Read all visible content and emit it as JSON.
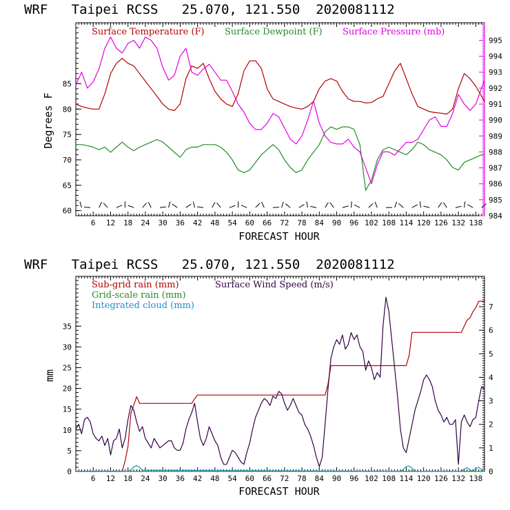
{
  "chart_data": [
    {
      "type": "line",
      "title": "WRF   Taipei RCSS   25.070, 121.550  2020081112",
      "xlabel": "FORECAST HOUR",
      "ylabel": "Degrees F",
      "x_ticks": [
        "6",
        "12",
        "18",
        "24",
        "30",
        "36",
        "42",
        "48",
        "54",
        "60",
        "66",
        "72",
        "78",
        "84",
        "90",
        "96",
        "102",
        "108",
        "114",
        "120",
        "126",
        "132",
        "138"
      ],
      "xlim": [
        0,
        141
      ],
      "ylim_left": [
        59,
        97
      ],
      "ylim_right": [
        984,
        996.1
      ],
      "y_ticks_left": [
        "60",
        "65",
        "70",
        "75",
        "80",
        "85"
      ],
      "y_ticks_right": [
        "984",
        "985",
        "986",
        "987",
        "988",
        "989",
        "990",
        "991",
        "992",
        "993",
        "994",
        "995"
      ],
      "colors": {
        "temp": "#b00000",
        "dewpoint": "#228b22",
        "pressure": "#e000e0",
        "wind_barbs": "#000000"
      },
      "series": [
        {
          "name": "Surface Temperature (F)",
          "axis": "left",
          "x": [
            0,
            2,
            4,
            6,
            8,
            10,
            12,
            14,
            16,
            18,
            20,
            22,
            24,
            26,
            28,
            30,
            32,
            34,
            36,
            38,
            40,
            42,
            44,
            46,
            48,
            50,
            52,
            54,
            56,
            58,
            60,
            62,
            64,
            66,
            68,
            70,
            72,
            74,
            76,
            78,
            80,
            82,
            84,
            86,
            88,
            90,
            92,
            94,
            96,
            98,
            100,
            102,
            104,
            106,
            108,
            110,
            112,
            114,
            116,
            118,
            120,
            122,
            124,
            126,
            128,
            130,
            132,
            134,
            136,
            138,
            140,
            141
          ],
          "values": [
            81,
            80.5,
            80.2,
            80,
            80,
            83,
            87,
            89,
            90,
            89,
            88.5,
            87,
            85.5,
            84,
            82.5,
            81,
            80,
            79.7,
            81,
            86,
            88.5,
            88,
            89,
            86,
            83.5,
            82,
            81,
            80.5,
            83,
            87.5,
            89.5,
            89.5,
            88,
            84,
            82,
            81.5,
            81,
            80.5,
            80.2,
            80,
            80.5,
            81.5,
            84,
            85.5,
            86,
            85.5,
            83.5,
            82,
            81.5,
            81.5,
            81.2,
            81.3,
            82,
            82.5,
            85,
            87.5,
            89,
            86,
            83,
            80.5,
            80,
            79.5,
            79.3,
            79.2,
            79,
            80,
            84,
            87,
            86,
            84.5,
            82.5,
            81.5
          ]
        },
        {
          "name": "Surface Dewpoint (F)",
          "axis": "left",
          "x": [
            0,
            2,
            4,
            6,
            8,
            10,
            12,
            14,
            16,
            18,
            20,
            22,
            24,
            26,
            28,
            30,
            32,
            34,
            36,
            38,
            40,
            42,
            44,
            46,
            48,
            50,
            52,
            54,
            56,
            58,
            60,
            62,
            64,
            66,
            68,
            70,
            72,
            74,
            76,
            78,
            80,
            82,
            84,
            86,
            88,
            90,
            92,
            94,
            96,
            98,
            100,
            102,
            104,
            106,
            108,
            110,
            112,
            114,
            116,
            118,
            120,
            122,
            124,
            126,
            128,
            130,
            132,
            134,
            136,
            138,
            140,
            141
          ],
          "values": [
            73,
            73,
            72.8,
            72.5,
            72,
            72.5,
            71.5,
            72.5,
            73.5,
            72.5,
            71.8,
            72.5,
            73,
            73.5,
            74,
            73.5,
            72.5,
            71.5,
            70.5,
            72,
            72.5,
            72.5,
            73,
            73,
            73,
            72.5,
            71.5,
            70,
            68,
            67.5,
            68,
            69.5,
            71,
            72,
            73,
            72,
            70,
            68.5,
            67.5,
            68,
            70,
            71.5,
            73,
            75.5,
            76.5,
            76,
            76.5,
            76.5,
            76,
            73,
            64,
            66,
            70,
            72,
            72.5,
            72,
            71.5,
            71,
            72,
            73.5,
            73,
            72,
            71.5,
            71,
            70,
            68.5,
            68,
            69.5,
            70,
            70.5,
            71,
            71
          ]
        },
        {
          "name": "Surface Pressure (mb)",
          "axis": "right",
          "x": [
            0,
            2,
            4,
            6,
            8,
            10,
            12,
            14,
            16,
            18,
            20,
            22,
            24,
            26,
            28,
            30,
            32,
            34,
            36,
            38,
            40,
            42,
            44,
            46,
            48,
            50,
            52,
            54,
            56,
            58,
            60,
            62,
            64,
            66,
            68,
            70,
            72,
            74,
            76,
            78,
            80,
            82,
            84,
            86,
            88,
            90,
            92,
            94,
            96,
            98,
            100,
            102,
            104,
            106,
            108,
            110,
            112,
            114,
            116,
            118,
            120,
            122,
            124,
            126,
            128,
            130,
            132,
            134,
            136,
            138,
            140,
            141
          ],
          "values": [
            992.2,
            993,
            992,
            992.4,
            993.2,
            994.5,
            995.2,
            994.5,
            994.2,
            994.8,
            995,
            994.5,
            995.2,
            995,
            994.5,
            993.3,
            992.5,
            992.8,
            994,
            994.5,
            993,
            992.8,
            993.2,
            993.5,
            993,
            992.5,
            992.5,
            991.8,
            991,
            990.5,
            989.8,
            989.4,
            989.4,
            989.8,
            990.4,
            990.2,
            989.5,
            988.8,
            988.5,
            989,
            990,
            991.2,
            989.8,
            989,
            988.6,
            988.5,
            988.5,
            988.8,
            988.3,
            988,
            987,
            986,
            987.2,
            988,
            988,
            987.8,
            988.2,
            988.6,
            988.6,
            988.8,
            989.4,
            990,
            990.2,
            989.6,
            989.6,
            990.4,
            991.6,
            991,
            990.6,
            991,
            992,
            992.5
          ]
        }
      ],
      "wind_barbs_note": "row of wind barbs drawn along the bottom of the panel"
    },
    {
      "type": "line",
      "title": "WRF   Taipei RCSS   25.070, 121.550  2020081112",
      "xlabel": "FORECAST HOUR",
      "ylabel": "mm",
      "x_ticks": [
        "6",
        "12",
        "18",
        "24",
        "30",
        "36",
        "42",
        "48",
        "54",
        "60",
        "66",
        "72",
        "78",
        "84",
        "90",
        "96",
        "102",
        "108",
        "114",
        "120",
        "126",
        "132",
        "138"
      ],
      "xlim": [
        0,
        141
      ],
      "ylim_left": [
        0,
        47
      ],
      "ylim_right": [
        0,
        8.29
      ],
      "y_ticks_left": [
        "0",
        "5",
        "10",
        "15",
        "20",
        "25",
        "30",
        "35"
      ],
      "y_ticks_right": [
        "0",
        "1",
        "2",
        "3",
        "4",
        "5",
        "6",
        "7"
      ],
      "colors": {
        "subgrid": "#b00000",
        "gridscale": "#228b22",
        "cloud": "#1e90c8",
        "wind": "#330044"
      },
      "series": [
        {
          "name": "Sub-grid rain (mm)",
          "axis": "left",
          "x": [
            0,
            16,
            17,
            18,
            19,
            20,
            21,
            22,
            40,
            41,
            42,
            43,
            86,
            87,
            88,
            89,
            108,
            109,
            110,
            111,
            112,
            113,
            114,
            115,
            116,
            117,
            118,
            132,
            133,
            134,
            135,
            136,
            137,
            138,
            139,
            141
          ],
          "values": [
            0,
            0,
            2.5,
            6,
            14,
            16,
            18,
            16.4,
            16.4,
            17.5,
            18.4,
            18.4,
            18.4,
            21,
            25.5,
            25.5,
            25.5,
            25.5,
            25.5,
            25.5,
            25.5,
            25.5,
            25.5,
            28,
            33.5,
            33.5,
            33.5,
            33.5,
            33.5,
            35,
            36.5,
            37,
            38.5,
            39.5,
            41,
            41
          ]
        },
        {
          "name": "Grid-scale rain (mm)",
          "axis": "left",
          "x": [
            0,
            141
          ],
          "values": [
            0,
            0
          ]
        },
        {
          "name": "Integrated cloud (mm)",
          "axis": "left",
          "x": [
            0,
            18,
            19,
            20,
            21,
            22,
            23,
            112,
            113,
            114,
            115,
            116,
            117,
            133,
            134,
            135,
            136,
            137,
            138,
            139,
            140,
            141
          ],
          "values": [
            0,
            0,
            0.4,
            1.1,
            1.4,
            1,
            0.3,
            0,
            0.5,
            1.2,
            1.3,
            0.8,
            0,
            0,
            0.6,
            0.9,
            0.4,
            0,
            0.7,
            1,
            0.4,
            0
          ]
        },
        {
          "name": "Surface Wind Speed (m/s)",
          "axis": "right",
          "x": [
            0,
            1,
            2,
            3,
            4,
            5,
            6,
            7,
            8,
            9,
            10,
            11,
            12,
            13,
            14,
            15,
            16,
            17,
            18,
            19,
            20,
            21,
            22,
            23,
            24,
            25,
            26,
            27,
            28,
            29,
            30,
            31,
            32,
            33,
            34,
            35,
            36,
            37,
            38,
            39,
            40,
            41,
            42,
            43,
            44,
            45,
            46,
            47,
            48,
            49,
            50,
            51,
            52,
            53,
            54,
            55,
            56,
            57,
            58,
            59,
            60,
            61,
            62,
            63,
            64,
            65,
            66,
            67,
            68,
            69,
            70,
            71,
            72,
            73,
            74,
            75,
            76,
            77,
            78,
            79,
            80,
            81,
            82,
            83,
            84,
            85,
            86,
            87,
            88,
            89,
            90,
            91,
            92,
            93,
            94,
            95,
            96,
            97,
            98,
            99,
            100,
            101,
            102,
            103,
            104,
            105,
            106,
            107,
            108,
            109,
            110,
            111,
            112,
            113,
            114,
            115,
            116,
            117,
            118,
            119,
            120,
            121,
            122,
            123,
            124,
            125,
            126,
            127,
            128,
            129,
            130,
            131,
            132,
            133,
            134,
            135,
            136,
            137,
            138,
            139,
            140,
            141
          ],
          "values": [
            1.8,
            2,
            1.6,
            2.2,
            2.3,
            2.1,
            1.6,
            1.4,
            1.3,
            1.5,
            1.1,
            1.4,
            0.7,
            1.3,
            1.4,
            1.8,
            1.0,
            1.4,
            2.2,
            2.8,
            2.6,
            2.1,
            1.7,
            1.9,
            1.4,
            1.2,
            1.0,
            1.4,
            1.2,
            1.0,
            1.1,
            1.2,
            1.3,
            1.3,
            1.0,
            0.9,
            0.9,
            1.2,
            1.8,
            2.2,
            2.5,
            2.9,
            2.1,
            1.4,
            1.1,
            1.4,
            1.9,
            1.6,
            1.3,
            1.1,
            0.6,
            0.3,
            0.3,
            0.6,
            0.9,
            0.8,
            0.6,
            0.4,
            0.3,
            0.8,
            1.2,
            1.8,
            2.3,
            2.6,
            2.9,
            3.1,
            3.0,
            2.8,
            3.2,
            3.1,
            3.4,
            3.3,
            2.9,
            2.6,
            2.8,
            3.1,
            2.8,
            2.5,
            2.4,
            2.0,
            1.8,
            1.5,
            1.1,
            0.6,
            0.2,
            0.6,
            2.0,
            3.5,
            4.8,
            5.3,
            5.6,
            5.4,
            5.8,
            5.2,
            5.4,
            5.9,
            5.6,
            5.8,
            5.3,
            5.1,
            4.3,
            4.7,
            4.4,
            3.9,
            4.2,
            4.0,
            6.2,
            7.4,
            6.8,
            5.6,
            4.4,
            3.2,
            1.8,
            1.0,
            0.8,
            1.4,
            2.0,
            2.6,
            3.0,
            3.4,
            3.9,
            4.1,
            3.9,
            3.6,
            3.0,
            2.6,
            2.4,
            2.1,
            2.3,
            2.0,
            2.0,
            2.2,
            0.3,
            2.1,
            2.4,
            2.1,
            1.9,
            2.2,
            2.3,
            3.0,
            3.6,
            3.5
          ]
        }
      ]
    }
  ]
}
